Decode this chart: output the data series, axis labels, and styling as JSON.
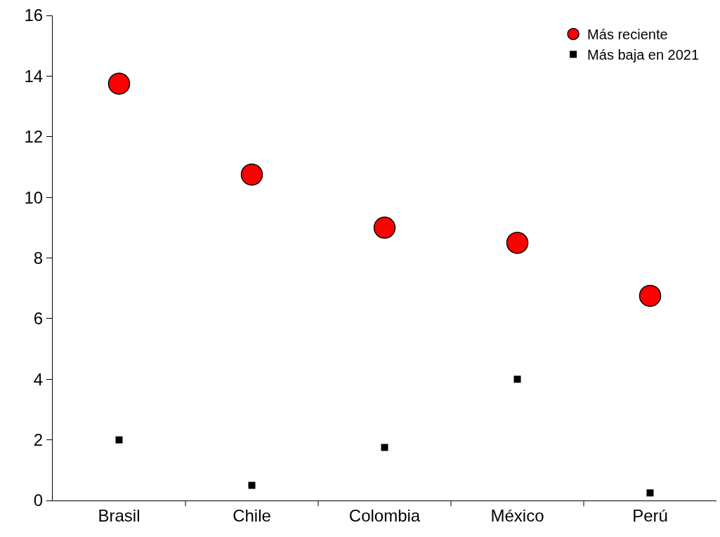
{
  "chart_data": {
    "type": "scatter",
    "categories": [
      "Brasil",
      "Chile",
      "Colombia",
      "México",
      "Perú"
    ],
    "series": [
      {
        "name": "Más reciente",
        "color": "#ff0000",
        "marker": "circle",
        "values": [
          13.75,
          10.75,
          9.0,
          8.5,
          6.75
        ]
      },
      {
        "name": "Más baja en 2021",
        "color": "#000000",
        "marker": "square",
        "values": [
          2.0,
          0.5,
          1.75,
          4.0,
          0.25
        ]
      }
    ],
    "ylim": [
      0,
      16
    ],
    "yticks": [
      0,
      2,
      4,
      6,
      8,
      10,
      12,
      14,
      16
    ],
    "legend": "top right"
  }
}
